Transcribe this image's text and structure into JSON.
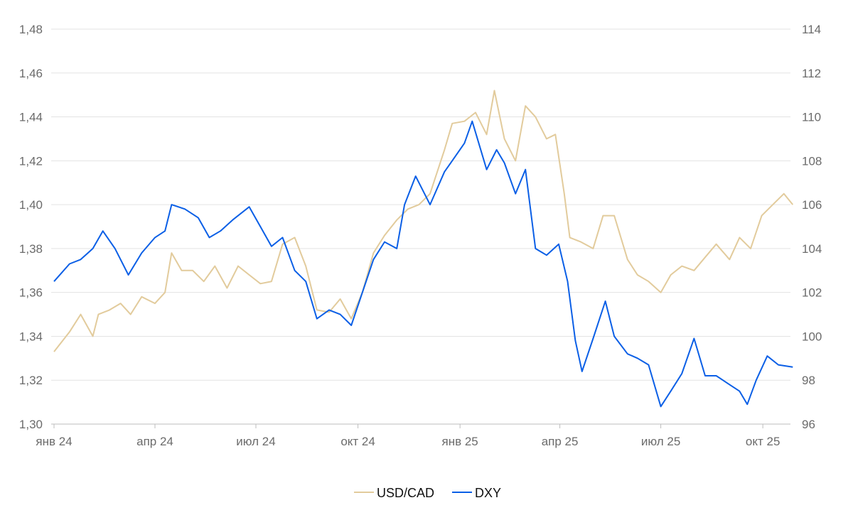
{
  "chart_data": {
    "type": "line",
    "title": "",
    "xlabel": "",
    "ylabel_left": "",
    "ylabel_right": "",
    "grid": true,
    "legend_position": "bottom",
    "x_ticks": [
      {
        "date": "2024-01-01",
        "label": "янв 24"
      },
      {
        "date": "2024-04-01",
        "label": "апр 24"
      },
      {
        "date": "2024-07-01",
        "label": "июл 24"
      },
      {
        "date": "2024-10-01",
        "label": "окт 24"
      },
      {
        "date": "2025-01-01",
        "label": "янв 25"
      },
      {
        "date": "2025-04-01",
        "label": "апр 25"
      },
      {
        "date": "2025-07-01",
        "label": "июл 25"
      },
      {
        "date": "2025-10-01",
        "label": "окт 25"
      }
    ],
    "y_left": {
      "min": 1.3,
      "max": 1.48,
      "ticks": [
        "1,30",
        "1,32",
        "1,34",
        "1,36",
        "1,38",
        "1,40",
        "1,42",
        "1,44",
        "1,46",
        "1,48"
      ]
    },
    "y_right": {
      "min": 96,
      "max": 114,
      "ticks": [
        "96",
        "98",
        "100",
        "102",
        "104",
        "106",
        "108",
        "110",
        "112",
        "114"
      ]
    },
    "series": [
      {
        "name": "USD/CAD",
        "axis": "left",
        "color": "#e2cb9c",
        "points": [
          [
            "2024-01-01",
            1.333
          ],
          [
            "2024-01-15",
            1.342
          ],
          [
            "2024-01-25",
            1.35
          ],
          [
            "2024-02-05",
            1.34
          ],
          [
            "2024-02-10",
            1.35
          ],
          [
            "2024-02-20",
            1.352
          ],
          [
            "2024-03-01",
            1.355
          ],
          [
            "2024-03-10",
            1.35
          ],
          [
            "2024-03-20",
            1.358
          ],
          [
            "2024-04-01",
            1.355
          ],
          [
            "2024-04-10",
            1.36
          ],
          [
            "2024-04-16",
            1.378
          ],
          [
            "2024-04-25",
            1.37
          ],
          [
            "2024-05-05",
            1.37
          ],
          [
            "2024-05-15",
            1.365
          ],
          [
            "2024-05-25",
            1.372
          ],
          [
            "2024-06-05",
            1.362
          ],
          [
            "2024-06-15",
            1.372
          ],
          [
            "2024-06-25",
            1.368
          ],
          [
            "2024-07-05",
            1.364
          ],
          [
            "2024-07-15",
            1.365
          ],
          [
            "2024-07-25",
            1.382
          ],
          [
            "2024-08-05",
            1.385
          ],
          [
            "2024-08-15",
            1.372
          ],
          [
            "2024-08-25",
            1.352
          ],
          [
            "2024-09-05",
            1.351
          ],
          [
            "2024-09-15",
            1.357
          ],
          [
            "2024-09-25",
            1.348
          ],
          [
            "2024-10-05",
            1.36
          ],
          [
            "2024-10-15",
            1.378
          ],
          [
            "2024-10-25",
            1.386
          ],
          [
            "2024-11-05",
            1.393
          ],
          [
            "2024-11-15",
            1.398
          ],
          [
            "2024-11-25",
            1.4
          ],
          [
            "2024-12-05",
            1.405
          ],
          [
            "2024-12-18",
            1.425
          ],
          [
            "2024-12-25",
            1.437
          ],
          [
            "2025-01-05",
            1.438
          ],
          [
            "2025-01-15",
            1.442
          ],
          [
            "2025-01-25",
            1.432
          ],
          [
            "2025-02-01",
            1.452
          ],
          [
            "2025-02-10",
            1.43
          ],
          [
            "2025-02-20",
            1.42
          ],
          [
            "2025-03-01",
            1.445
          ],
          [
            "2025-03-10",
            1.44
          ],
          [
            "2025-03-20",
            1.43
          ],
          [
            "2025-03-28",
            1.432
          ],
          [
            "2025-04-05",
            1.405
          ],
          [
            "2025-04-10",
            1.385
          ],
          [
            "2025-04-20",
            1.383
          ],
          [
            "2025-05-01",
            1.38
          ],
          [
            "2025-05-10",
            1.395
          ],
          [
            "2025-05-20",
            1.395
          ],
          [
            "2025-06-01",
            1.375
          ],
          [
            "2025-06-10",
            1.368
          ],
          [
            "2025-06-20",
            1.365
          ],
          [
            "2025-07-01",
            1.36
          ],
          [
            "2025-07-10",
            1.368
          ],
          [
            "2025-07-20",
            1.372
          ],
          [
            "2025-07-31",
            1.37
          ],
          [
            "2025-08-10",
            1.376
          ],
          [
            "2025-08-20",
            1.382
          ],
          [
            "2025-09-01",
            1.375
          ],
          [
            "2025-09-10",
            1.385
          ],
          [
            "2025-09-20",
            1.38
          ],
          [
            "2025-09-30",
            1.395
          ],
          [
            "2025-10-10",
            1.4
          ],
          [
            "2025-10-20",
            1.405
          ],
          [
            "2025-10-28",
            1.4
          ]
        ]
      },
      {
        "name": "DXY",
        "axis": "right",
        "color": "#0b5fe6",
        "points": [
          [
            "2024-01-01",
            102.5
          ],
          [
            "2024-01-15",
            103.3
          ],
          [
            "2024-01-25",
            103.5
          ],
          [
            "2024-02-05",
            104.0
          ],
          [
            "2024-02-14",
            104.8
          ],
          [
            "2024-02-25",
            104.0
          ],
          [
            "2024-03-08",
            102.8
          ],
          [
            "2024-03-20",
            103.8
          ],
          [
            "2024-04-01",
            104.5
          ],
          [
            "2024-04-10",
            104.8
          ],
          [
            "2024-04-16",
            106.0
          ],
          [
            "2024-04-28",
            105.8
          ],
          [
            "2024-05-10",
            105.4
          ],
          [
            "2024-05-20",
            104.5
          ],
          [
            "2024-05-30",
            104.8
          ],
          [
            "2024-06-10",
            105.3
          ],
          [
            "2024-06-25",
            105.9
          ],
          [
            "2024-07-05",
            105.0
          ],
          [
            "2024-07-15",
            104.1
          ],
          [
            "2024-07-25",
            104.5
          ],
          [
            "2024-08-05",
            103.0
          ],
          [
            "2024-08-15",
            102.5
          ],
          [
            "2024-08-25",
            100.8
          ],
          [
            "2024-09-05",
            101.2
          ],
          [
            "2024-09-15",
            101.0
          ],
          [
            "2024-09-25",
            100.5
          ],
          [
            "2024-10-05",
            102.0
          ],
          [
            "2024-10-15",
            103.5
          ],
          [
            "2024-10-25",
            104.3
          ],
          [
            "2024-11-05",
            104.0
          ],
          [
            "2024-11-12",
            106.0
          ],
          [
            "2024-11-22",
            107.3
          ],
          [
            "2024-12-05",
            106.0
          ],
          [
            "2024-12-18",
            107.5
          ],
          [
            "2024-12-25",
            108.0
          ],
          [
            "2025-01-05",
            108.8
          ],
          [
            "2025-01-12",
            109.8
          ],
          [
            "2025-01-25",
            107.6
          ],
          [
            "2025-02-03",
            108.5
          ],
          [
            "2025-02-10",
            107.9
          ],
          [
            "2025-02-20",
            106.5
          ],
          [
            "2025-03-01",
            107.6
          ],
          [
            "2025-03-10",
            104.0
          ],
          [
            "2025-03-20",
            103.7
          ],
          [
            "2025-03-31",
            104.2
          ],
          [
            "2025-04-08",
            102.5
          ],
          [
            "2025-04-15",
            99.8
          ],
          [
            "2025-04-21",
            98.4
          ],
          [
            "2025-05-01",
            99.9
          ],
          [
            "2025-05-12",
            101.6
          ],
          [
            "2025-05-20",
            100.0
          ],
          [
            "2025-06-01",
            99.2
          ],
          [
            "2025-06-10",
            99.0
          ],
          [
            "2025-06-20",
            98.7
          ],
          [
            "2025-07-01",
            96.8
          ],
          [
            "2025-07-10",
            97.5
          ],
          [
            "2025-07-20",
            98.3
          ],
          [
            "2025-07-31",
            99.9
          ],
          [
            "2025-08-10",
            98.2
          ],
          [
            "2025-08-20",
            98.2
          ],
          [
            "2025-09-01",
            97.8
          ],
          [
            "2025-09-10",
            97.5
          ],
          [
            "2025-09-17",
            96.9
          ],
          [
            "2025-09-25",
            98.0
          ],
          [
            "2025-10-05",
            99.1
          ],
          [
            "2025-10-15",
            98.7
          ],
          [
            "2025-10-28",
            98.6
          ]
        ]
      }
    ]
  }
}
